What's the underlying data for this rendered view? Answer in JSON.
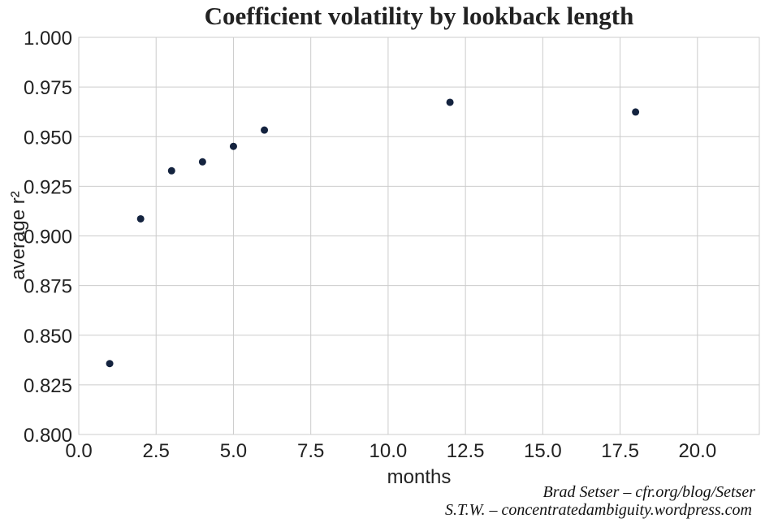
{
  "chart_data": {
    "type": "scatter",
    "title": "Coefficient volatility by lookback length",
    "xlabel": "months",
    "ylabel": "average r²",
    "xlim": [
      0,
      22
    ],
    "ylim": [
      0.8,
      1.0
    ],
    "xticks": [
      "0.0",
      "2.5",
      "5.0",
      "7.5",
      "10.0",
      "12.5",
      "15.0",
      "17.5",
      "20.0"
    ],
    "yticks": [
      "0.800",
      "0.825",
      "0.850",
      "0.875",
      "0.900",
      "0.925",
      "0.950",
      "0.975",
      "1.000"
    ],
    "grid": true,
    "marker_color": "#14233f",
    "points": [
      {
        "x": 1,
        "y": 0.8357
      },
      {
        "x": 2,
        "y": 0.9086
      },
      {
        "x": 3,
        "y": 0.9328
      },
      {
        "x": 4,
        "y": 0.9373
      },
      {
        "x": 5,
        "y": 0.9451
      },
      {
        "x": 6,
        "y": 0.9533
      },
      {
        "x": 12,
        "y": 0.9673
      },
      {
        "x": 18,
        "y": 0.9624
      }
    ]
  },
  "credits": {
    "line1": "Brad Setser – cfr.org/blog/Setser",
    "line2": "S.T.W. – concentratedambiguity.wordpress.com"
  }
}
